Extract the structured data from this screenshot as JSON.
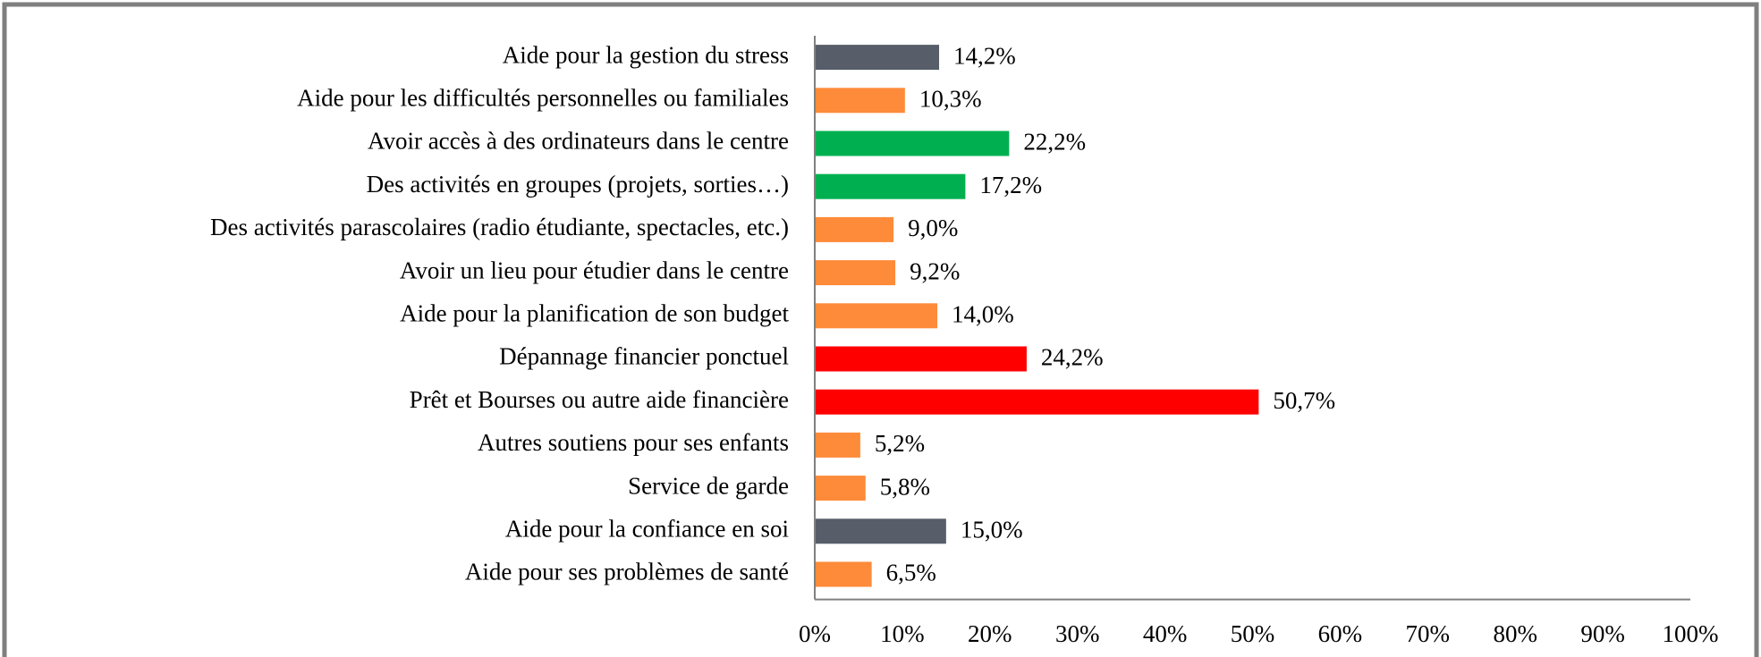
{
  "chart_data": {
    "type": "bar",
    "orientation": "horizontal",
    "categories": [
      "Aide pour la gestion du stress",
      "Aide pour les difficultés personnelles ou familiales",
      "Avoir accès à des ordinateurs dans le centre",
      "Des activités en groupes (projets, sorties…)",
      "Des activités parascolaires (radio étudiante, spectacles, etc.)",
      "Avoir un lieu pour étudier dans le centre",
      "Aide pour la planification de son budget",
      "Dépannage financier ponctuel",
      "Prêt et Bourses ou autre aide financière",
      "Autres soutiens pour ses enfants",
      "Service de garde",
      "Aide pour la confiance en soi",
      "Aide pour ses problèmes de santé"
    ],
    "values": [
      14.2,
      10.3,
      22.2,
      17.2,
      9.0,
      9.2,
      14.0,
      24.2,
      50.7,
      5.2,
      5.8,
      15.0,
      6.5
    ],
    "value_labels": [
      "14,2%",
      "10,3%",
      "22,2%",
      "17,2%",
      "9,0%",
      "9,2%",
      "14,0%",
      "24,2%",
      "50,7%",
      "5,2%",
      "5,8%",
      "15,0%",
      "6,5%"
    ],
    "colors": [
      "#575e6a",
      "#fd8b3a",
      "#00b050",
      "#00b050",
      "#fd8b3a",
      "#fd8b3a",
      "#fd8b3a",
      "#ff0000",
      "#ff0000",
      "#fd8b3a",
      "#fd8b3a",
      "#575e6a",
      "#fd8b3a"
    ],
    "xlim": [
      0,
      100
    ],
    "xticks": [
      {
        "value": 0,
        "label": "0%"
      },
      {
        "value": 10,
        "label": "10%"
      },
      {
        "value": 20,
        "label": "20%"
      },
      {
        "value": 30,
        "label": "30%"
      },
      {
        "value": 40,
        "label": "40%"
      },
      {
        "value": 50,
        "label": "50%"
      },
      {
        "value": 60,
        "label": "60%"
      },
      {
        "value": 70,
        "label": "70%"
      },
      {
        "value": 80,
        "label": "80%"
      },
      {
        "value": 90,
        "label": "90%"
      },
      {
        "value": 100,
        "label": "100%"
      }
    ],
    "grid": false
  }
}
